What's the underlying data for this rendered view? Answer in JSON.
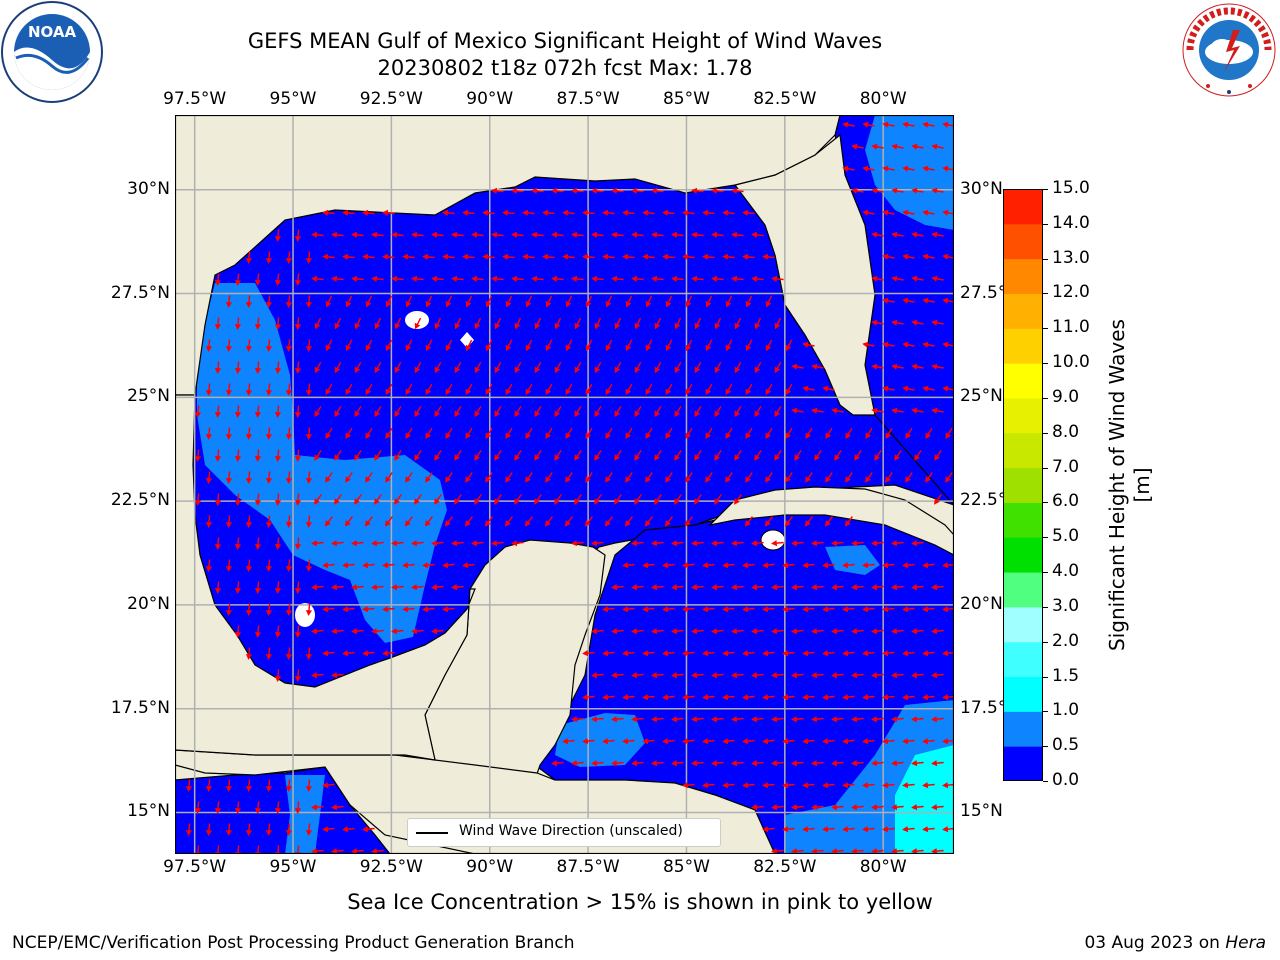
{
  "title": {
    "line1": "GEFS MEAN Gulf of Mexico Significant Height of Wind Waves",
    "line2": "20230802 t18z 072h fcst   Max: 1.78"
  },
  "logos": {
    "left": "NOAA",
    "left_ring_text": "NATIONAL OCEANIC AND ATMOSPHERIC ADMINISTRATION · U.S. DEPARTMENT OF COMMERCE",
    "right_ring_text": "NATIONAL WEATHER SERVICE"
  },
  "map": {
    "lon_labels": [
      "97.5°W",
      "95°W",
      "92.5°W",
      "90°W",
      "87.5°W",
      "85°W",
      "82.5°W",
      "80°W"
    ],
    "lat_labels": [
      "30°N",
      "27.5°N",
      "25°N",
      "22.5°N",
      "20°N",
      "17.5°N",
      "15°N"
    ],
    "lat_labels_right": [
      "30°N",
      "27.5°",
      "25°N",
      "22.5°",
      "20°N",
      "17.5°",
      "15°N"
    ],
    "lon_range": [
      -98,
      -78.2
    ],
    "lat_range": [
      14.0,
      31.8
    ],
    "land_color": "#efedda",
    "wave_colors": [
      "#0000ff",
      "#0f84ff",
      "#00ffff"
    ],
    "arrow_color": "#ff0000",
    "legend": "Wind Wave Direction (unscaled)"
  },
  "colorbar": {
    "ticks": [
      "0.0",
      "0.5",
      "1.0",
      "1.5",
      "2.0",
      "3.0",
      "4.0",
      "5.0",
      "6.0",
      "7.0",
      "8.0",
      "9.0",
      "10.0",
      "11.0",
      "12.0",
      "13.0",
      "14.0",
      "15.0"
    ],
    "colors": [
      "#0000ff",
      "#0f84ff",
      "#00ffff",
      "#40ffff",
      "#a0ffff",
      "#50ff80",
      "#00e000",
      "#40e000",
      "#a0e000",
      "#c8e800",
      "#e6f000",
      "#ffff00",
      "#ffd000",
      "#ffb000",
      "#ff8800",
      "#ff5000",
      "#ff2000"
    ],
    "label": "Significant Height of Wind Waves [m]"
  },
  "caption": "Sea Ice Concentration > 15% is shown in pink to yellow",
  "footer": {
    "left": "NCEP/EMC/Verification Post Processing Product Generation Branch",
    "right_date": "03 Aug 2023 on ",
    "right_host": "Hera"
  }
}
